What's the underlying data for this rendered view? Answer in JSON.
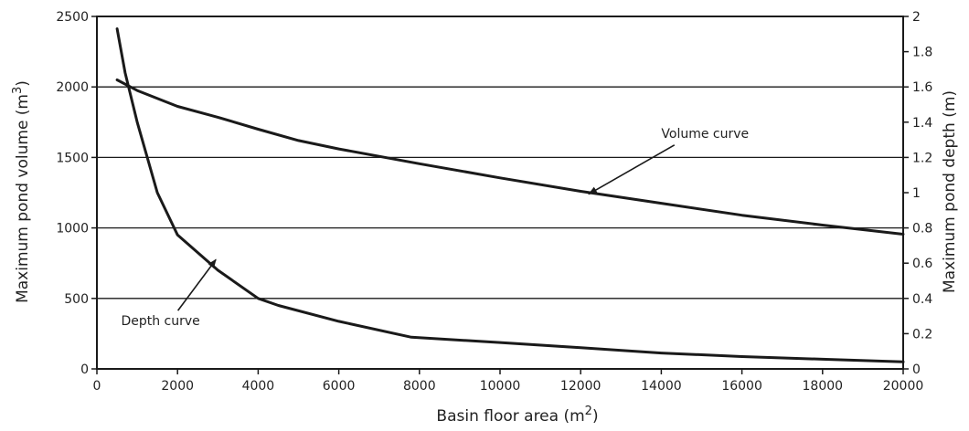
{
  "chart_data": {
    "type": "line",
    "xlabel": "Basin floor area (m",
    "xlabel_sup": "2",
    "xlabel_end": ")",
    "ylabel": "Maximum pond volume (m",
    "ylabel_sup": "3",
    "ylabel_end": ")",
    "y2label": "Maximum pond depth (m)",
    "xlim": [
      0,
      20000
    ],
    "ylim": [
      0,
      2500
    ],
    "y2lim": [
      0,
      2
    ],
    "xticks": [
      "0",
      "2000",
      "4000",
      "6000",
      "8000",
      "10000",
      "12000",
      "14000",
      "16000",
      "18000",
      "20000"
    ],
    "yticks": [
      "0",
      "500",
      "1000",
      "1500",
      "2000",
      "2500"
    ],
    "y2ticks": [
      "0",
      "0.2",
      "0.4",
      "0.6",
      "0.8",
      "1",
      "1.2",
      "1.4",
      "1.6",
      "1.8",
      "2"
    ],
    "grid": "horizontal",
    "series": [
      {
        "name": "Volume curve",
        "axis": "left",
        "color": "#1a1a1a",
        "x": [
          500,
          1000,
          2000,
          3000,
          4000,
          5000,
          6000,
          8000,
          10000,
          12000,
          14000,
          16000,
          18000,
          20000
        ],
        "y": [
          2050,
          1975,
          1862,
          1785,
          1700,
          1620,
          1560,
          1455,
          1355,
          1260,
          1175,
          1090,
          1020,
          955
        ]
      },
      {
        "name": "Depth curve",
        "axis": "right",
        "color": "#1a1a1a",
        "x": [
          500,
          700,
          1000,
          1500,
          2000,
          3000,
          4000,
          4500,
          6000,
          7800,
          10000,
          12000,
          14000,
          16000,
          18000,
          20000
        ],
        "y": [
          1.93,
          1.68,
          1.4,
          1.0,
          0.76,
          0.56,
          0.4,
          0.36,
          0.27,
          0.18,
          0.15,
          0.12,
          0.09,
          0.07,
          0.055,
          0.04
        ]
      }
    ],
    "annotations": [
      {
        "text": "Volume curve",
        "label_x": 14000,
        "label_y": 1640,
        "arrow_to_x": 12200,
        "arrow_to_y": 1240,
        "axis": "left"
      },
      {
        "text": "Depth curve",
        "label_x": 600,
        "label_y": 310,
        "arrow_to_x": 2950,
        "arrow_to_y": 0.62,
        "axis": "right"
      }
    ]
  }
}
